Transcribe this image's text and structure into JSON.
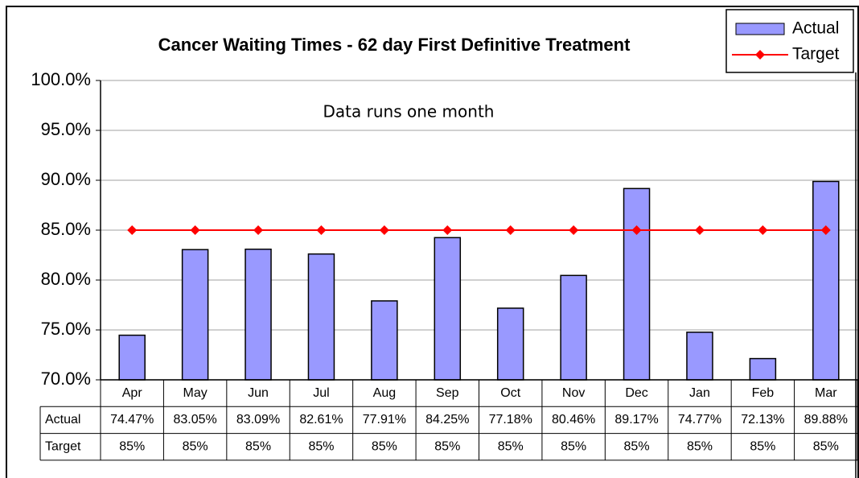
{
  "chart_data": {
    "type": "bar",
    "title": "Cancer Waiting Times - 62 day First Definitive Treatment",
    "annotation": "Data runs one month",
    "categories": [
      "Apr",
      "May",
      "Jun",
      "Jul",
      "Aug",
      "Sep",
      "Oct",
      "Nov",
      "Dec",
      "Jan",
      "Feb",
      "Mar"
    ],
    "series": [
      {
        "name": "Actual",
        "type": "bar",
        "color": "#9999ff",
        "values": [
          74.47,
          83.05,
          83.09,
          82.61,
          77.91,
          84.25,
          77.18,
          80.46,
          89.17,
          74.77,
          72.13,
          89.88
        ],
        "value_labels": [
          "74.47%",
          "83.05%",
          "83.09%",
          "82.61%",
          "77.91%",
          "84.25%",
          "77.18%",
          "80.46%",
          "89.17%",
          "74.77%",
          "72.13%",
          "89.88%"
        ]
      },
      {
        "name": "Target",
        "type": "line",
        "color": "#ff0000",
        "values": [
          85,
          85,
          85,
          85,
          85,
          85,
          85,
          85,
          85,
          85,
          85,
          85
        ],
        "value_labels": [
          "85%",
          "85%",
          "85%",
          "85%",
          "85%",
          "85%",
          "85%",
          "85%",
          "85%",
          "85%",
          "85%",
          "85%"
        ]
      }
    ],
    "ylim": [
      70,
      100
    ],
    "yticks": [
      {
        "value": 70,
        "label": "70.0%"
      },
      {
        "value": 75,
        "label": "75.0%"
      },
      {
        "value": 80,
        "label": "80.0%"
      },
      {
        "value": 85,
        "label": "85.0%"
      },
      {
        "value": 90,
        "label": "90.0%"
      },
      {
        "value": 95,
        "label": "95.0%"
      },
      {
        "value": 100,
        "label": "100.0%"
      }
    ],
    "grid": true,
    "legend": "top-right"
  }
}
